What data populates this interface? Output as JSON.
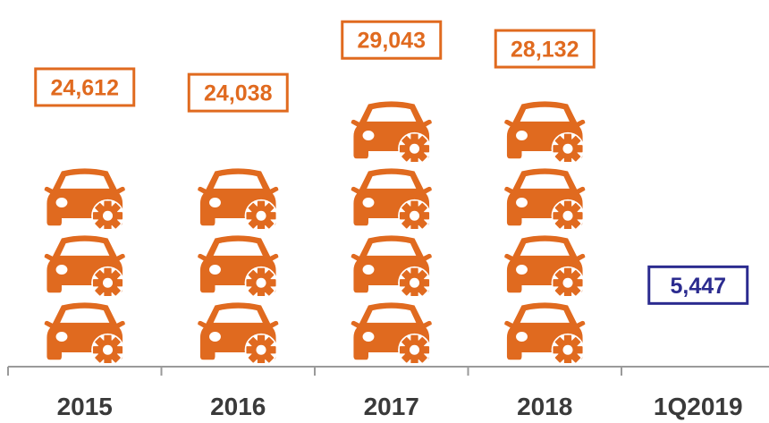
{
  "chart_data": {
    "type": "bar",
    "style": "pictograph",
    "icon": "car-with-gear-icon",
    "units_per_icon": 6500,
    "categories": [
      "2015",
      "2016",
      "2017",
      "2018",
      "1Q2019"
    ],
    "values": [
      24612,
      24038,
      29043,
      28132,
      5447
    ],
    "value_labels": [
      "24,612",
      "24,038",
      "29,043",
      "28,132",
      "5,447"
    ],
    "colors": [
      "#E06A1F",
      "#E06A1F",
      "#E06A1F",
      "#E06A1F",
      "#2B2B8F"
    ],
    "title": "",
    "xlabel": "",
    "ylabel": "",
    "grid": false,
    "legend": "none"
  }
}
